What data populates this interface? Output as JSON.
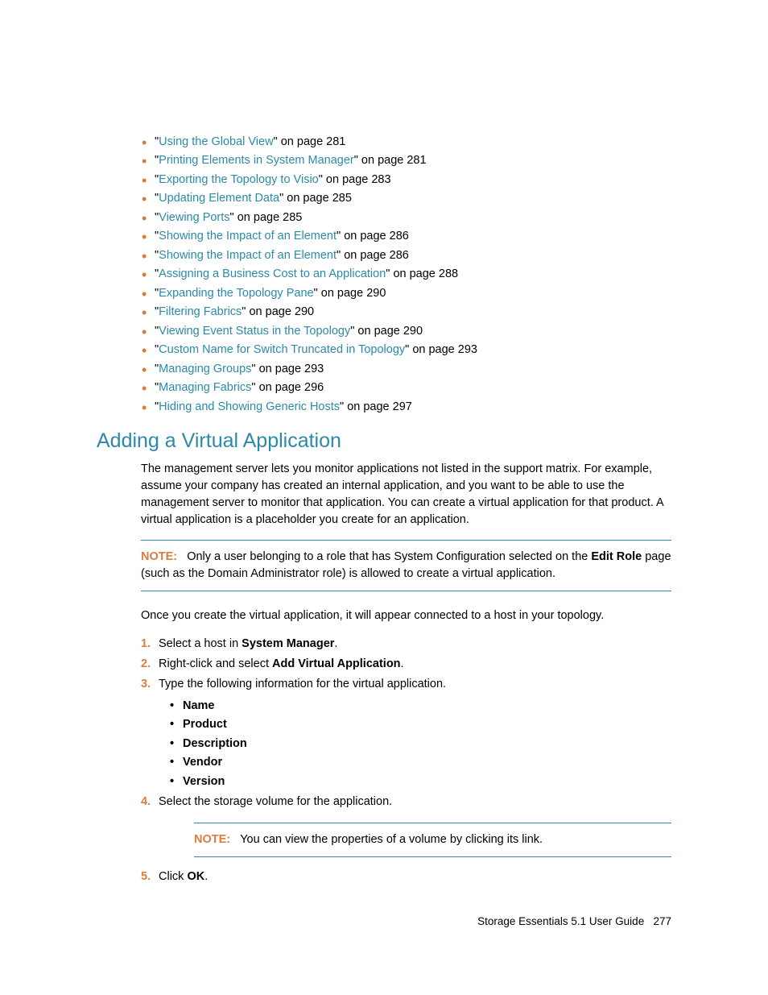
{
  "colors": {
    "link": "#2b8aa8",
    "accent": "#d97d3e",
    "text": "#000000",
    "background": "#ffffff",
    "rule": "#2b8aa8"
  },
  "typography": {
    "body_fontsize": 14.5,
    "heading_fontsize": 25,
    "heading_weight": 400,
    "line_height": 1.45
  },
  "toc": [
    {
      "title": "Using the Global View",
      "page": "281"
    },
    {
      "title": "Printing Elements in System Manager",
      "page": "281"
    },
    {
      "title": "Exporting the Topology to Visio",
      "page": "283"
    },
    {
      "title": "Updating Element Data",
      "page": "285"
    },
    {
      "title": "Viewing Ports",
      "page": "285"
    },
    {
      "title": "Showing the Impact of an Element",
      "page": "286"
    },
    {
      "title": "Showing the Impact of an Element",
      "page": "286"
    },
    {
      "title": "Assigning a Business Cost to an Application",
      "page": "288"
    },
    {
      "title": "Expanding the Topology Pane",
      "page": "290"
    },
    {
      "title": "Filtering Fabrics",
      "page": "290"
    },
    {
      "title": "Viewing Event Status in the Topology",
      "page": "290"
    },
    {
      "title": "Custom Name for Switch Truncated in Topology",
      "page": "293"
    },
    {
      "title": "Managing Groups",
      "page": "293"
    },
    {
      "title": "Managing Fabrics",
      "page": "296"
    },
    {
      "title": "Hiding and Showing Generic Hosts",
      "page": "297"
    }
  ],
  "toc_prefix": "\"",
  "toc_midfix": "\" on page ",
  "heading": "Adding a Virtual Application",
  "intro_paragraph": "The management server lets you monitor applications not listed in the support matrix. For example, assume your company has created an internal application, and you want to be able to use the management server to monitor that application. You can create a virtual application for that product. A virtual application is a placeholder you create for an application.",
  "note1": {
    "label": "NOTE:",
    "pre": "Only a user belonging to a role that has System Configuration selected on the ",
    "bold": "Edit Role",
    "post": " page (such as the Domain Administrator role) is allowed to create a virtual application."
  },
  "after_note": "Once you create the virtual application, it will appear connected to a host in your topology.",
  "step1": {
    "pre": "Select a host in ",
    "bold": "System Manager",
    "post": "."
  },
  "step2": {
    "pre": "Right-click and select ",
    "bold": "Add Virtual Application",
    "post": "."
  },
  "step3": {
    "text": "Type the following information for the virtual application."
  },
  "fields": [
    "Name",
    "Product",
    "Description",
    "Vendor",
    "Version"
  ],
  "step4": {
    "text": "Select the storage volume for the application."
  },
  "note2": {
    "label": "NOTE:",
    "text": "You can view the properties of a volume by clicking its link."
  },
  "step5": {
    "pre": "Click ",
    "bold": "OK",
    "post": "."
  },
  "footer": {
    "title": "Storage Essentials 5.1 User Guide",
    "page": "277"
  }
}
